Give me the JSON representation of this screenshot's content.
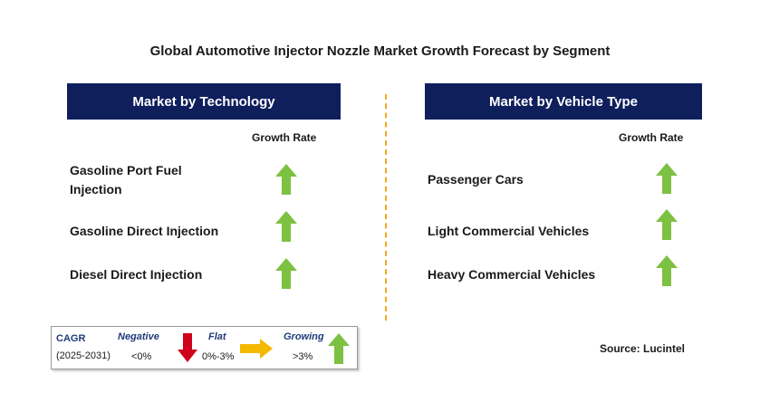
{
  "title": "Global Automotive Injector Nozzle Market Growth Forecast by Segment",
  "left_panel": {
    "header": "Market by Technology",
    "growth_label": "Growth Rate",
    "segments": [
      {
        "label_line1": "Gasoline Port Fuel",
        "label_line2": "Injection",
        "trend": "growing"
      },
      {
        "label_line1": "Gasoline Direct Injection",
        "label_line2": "",
        "trend": "growing"
      },
      {
        "label_line1": "Diesel Direct Injection",
        "label_line2": "",
        "trend": "growing"
      }
    ]
  },
  "right_panel": {
    "header": "Market by Vehicle Type",
    "growth_label": "Growth Rate",
    "segments": [
      {
        "label_line1": "Passenger Cars",
        "trend": "growing"
      },
      {
        "label_line1": "Light Commercial Vehicles",
        "trend": "growing"
      },
      {
        "label_line1": "Heavy Commercial Vehicles",
        "trend": "growing"
      }
    ]
  },
  "legend": {
    "cagr_label": "CAGR",
    "period": "(2025-2031)",
    "negative_label": "Negative",
    "negative_range": "<0%",
    "flat_label": "Flat",
    "flat_range": "0%-3%",
    "growing_label": "Growing",
    "growing_range": ">3%"
  },
  "source": "Source: Lucintel",
  "colors": {
    "header_bg": "#0f1f5c",
    "growing_arrow": "#7dc142",
    "negative_arrow": "#d0021b",
    "flat_arrow": "#f5b800",
    "divider": "#f5a623"
  }
}
